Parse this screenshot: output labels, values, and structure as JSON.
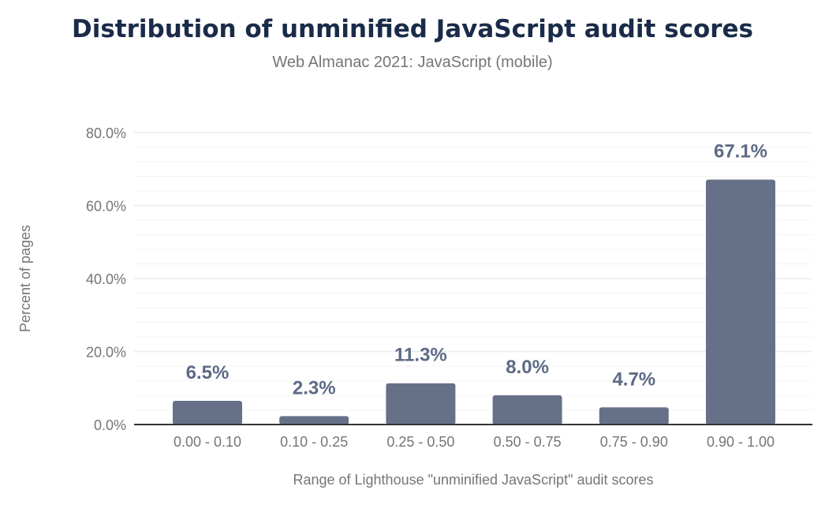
{
  "chart_data": {
    "type": "bar",
    "title": "Distribution of unminified JavaScript audit scores",
    "subtitle": "Web Almanac 2021: JavaScript (mobile)",
    "xlabel": "Range of Lighthouse \"unminified JavaScript\" audit scores",
    "ylabel": "Percent of pages",
    "categories": [
      "0.00 - 0.10",
      "0.10 - 0.25",
      "0.25 - 0.50",
      "0.50 - 0.75",
      "0.75 - 0.90",
      "0.90 - 1.00"
    ],
    "values": [
      6.5,
      2.3,
      11.3,
      8.0,
      4.7,
      67.1
    ],
    "value_labels": [
      "6.5%",
      "2.3%",
      "11.3%",
      "8.0%",
      "4.7%",
      "67.1%"
    ],
    "yticks": [
      "0.0%",
      "20.0%",
      "40.0%",
      "60.0%",
      "80.0%"
    ],
    "ylim": [
      0,
      80
    ],
    "grid": true,
    "bar_color": "#667189"
  }
}
